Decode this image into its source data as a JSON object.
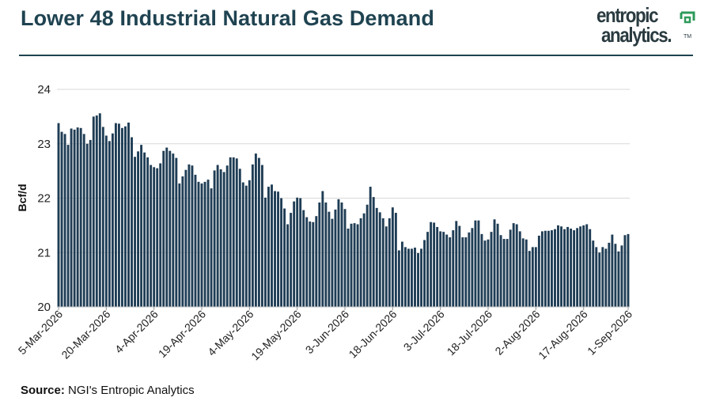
{
  "header": {
    "title": "Lower 48 Industrial Natural Gas Demand",
    "logo_line1": "entropic",
    "logo_line2": "analytics.",
    "logo_tm": "TM"
  },
  "footer": {
    "source_label": "Source:",
    "source_text": " NGI's Entropic Analytics"
  },
  "colors": {
    "bar": "#1f3d55",
    "title": "#1f4351",
    "grid": "#d9d9d9",
    "logo_accent": "#2e9a5a"
  },
  "chart_data": {
    "type": "bar",
    "title": "",
    "xlabel": "",
    "ylabel": "Bcf/d",
    "ylim": [
      20,
      24
    ],
    "yticks": [
      20,
      21,
      22,
      23,
      24
    ],
    "grid": true,
    "x_tick_labels": [
      "5-Mar-2026",
      "20-Mar-2026",
      "4-Apr-2026",
      "19-Apr-2026",
      "4-May-2026",
      "19-May-2026",
      "3-Jun-2026",
      "18-Jun-2026",
      "3-Jul-2026",
      "18-Jul-2026",
      "2-Aug-2026",
      "17-Aug-2026",
      "1-Sep-2026"
    ],
    "x_start": "2026-03-05",
    "values": [
      23.38,
      23.22,
      23.18,
      22.98,
      23.28,
      23.26,
      23.3,
      23.29,
      23.18,
      23.0,
      23.07,
      23.5,
      23.52,
      23.56,
      23.31,
      23.15,
      23.05,
      23.19,
      23.38,
      23.37,
      23.29,
      23.32,
      23.39,
      23.12,
      22.76,
      22.86,
      22.98,
      22.84,
      22.75,
      22.61,
      22.57,
      22.55,
      22.64,
      22.87,
      22.93,
      22.87,
      22.82,
      22.74,
      22.27,
      22.4,
      22.52,
      22.62,
      22.6,
      22.43,
      22.3,
      22.27,
      22.3,
      22.34,
      22.18,
      22.51,
      22.61,
      22.53,
      22.48,
      22.6,
      22.75,
      22.75,
      22.73,
      22.54,
      22.29,
      22.23,
      22.33,
      22.62,
      22.82,
      22.74,
      22.61,
      22.01,
      22.21,
      22.25,
      22.13,
      22.12,
      22.0,
      21.81,
      21.52,
      21.73,
      21.94,
      22.01,
      22.0,
      21.78,
      21.65,
      21.57,
      21.56,
      21.67,
      21.92,
      22.13,
      21.92,
      21.75,
      21.62,
      21.79,
      21.98,
      21.92,
      21.8,
      21.44,
      21.53,
      21.54,
      21.52,
      21.63,
      21.72,
      21.88,
      22.21,
      22.02,
      21.82,
      21.74,
      21.63,
      21.48,
      21.63,
      21.83,
      21.73,
      21.04,
      21.2,
      21.1,
      21.07,
      21.07,
      21.09,
      20.99,
      21.07,
      21.23,
      21.38,
      21.56,
      21.55,
      21.47,
      21.39,
      21.38,
      21.33,
      21.28,
      21.41,
      21.58,
      21.49,
      21.28,
      21.28,
      21.37,
      21.45,
      21.59,
      21.59,
      21.34,
      21.22,
      21.24,
      21.38,
      21.61,
      21.53,
      21.32,
      21.25,
      21.25,
      21.42,
      21.54,
      21.52,
      21.39,
      21.26,
      21.24,
      21.03,
      21.1,
      21.1,
      21.31,
      21.39,
      21.4,
      21.4,
      21.41,
      21.43,
      21.5,
      21.48,
      21.43,
      21.47,
      21.44,
      21.41,
      21.45,
      21.48,
      21.5,
      21.52,
      21.43,
      21.22,
      21.1,
      21.0,
      21.1,
      21.07,
      21.18,
      21.33,
      21.16,
      21.02,
      21.13,
      21.32,
      21.34
    ]
  }
}
